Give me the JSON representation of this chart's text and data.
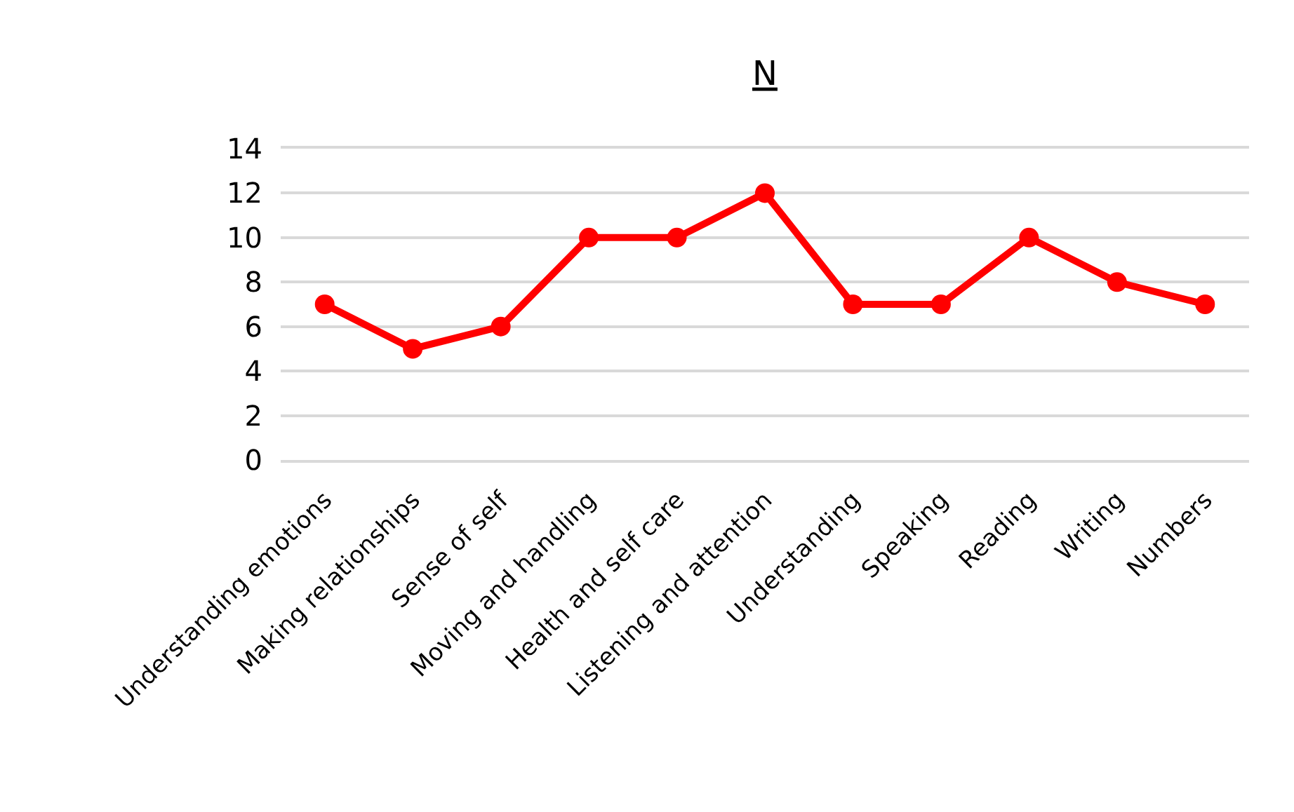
{
  "chart_data": {
    "type": "line",
    "title": "N",
    "categories": [
      "Understanding emotions",
      "Making relationships",
      "Sense of self",
      "Moving and handling",
      "Health and self care",
      "Listening and attention",
      "Understanding",
      "Speaking",
      "Reading",
      "Writing",
      "Numbers"
    ],
    "series": [
      {
        "color": "#ff0000",
        "values": [
          7,
          5,
          6,
          10,
          10,
          12,
          7,
          7,
          10,
          8,
          7
        ]
      }
    ],
    "ylim": [
      0,
      14
    ],
    "yticks": [
      0,
      2,
      4,
      6,
      8,
      10,
      12,
      14
    ],
    "grid": "y",
    "marker": "circle",
    "line_style": "solid"
  }
}
